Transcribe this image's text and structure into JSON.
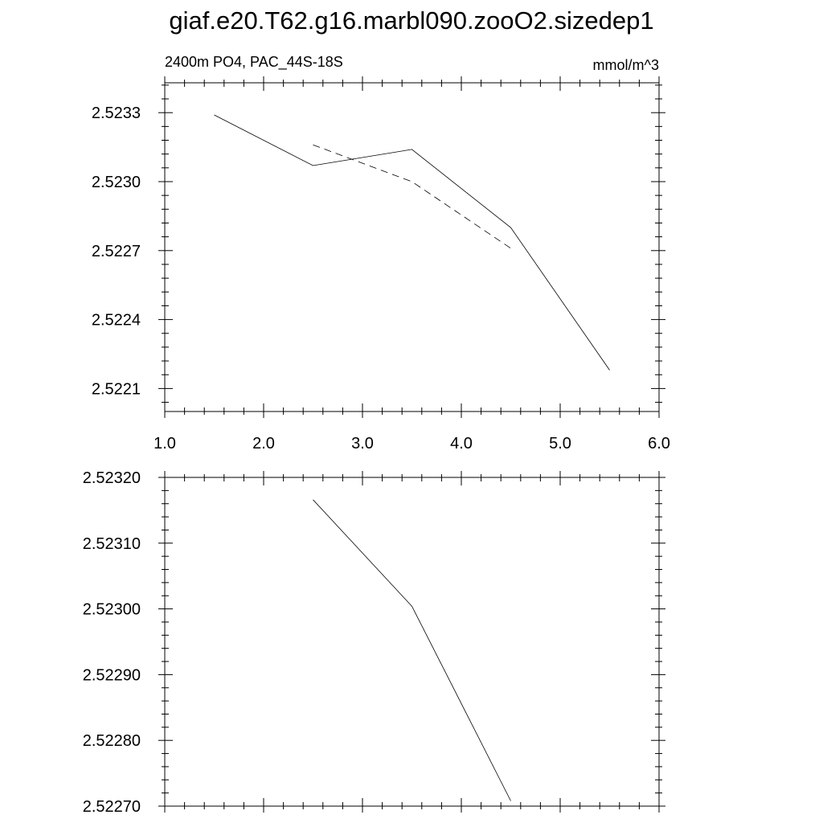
{
  "title": "giaf.e20.T62.g16.marbl090.zooO2.sizedep1",
  "chart_data": [
    {
      "type": "line",
      "subtitle_left": "2400m PO4, PAC_44S-18S",
      "subtitle_right": "mmol/m^3",
      "xlim": [
        1.0,
        6.0
      ],
      "ylim": [
        2.522,
        2.52343
      ],
      "x_ticks": [
        "1.0",
        "2.0",
        "3.0",
        "4.0",
        "5.0",
        "6.0"
      ],
      "x_tick_values": [
        1.0,
        2.0,
        3.0,
        4.0,
        5.0,
        6.0
      ],
      "y_ticks": [
        "2.5233",
        "2.5230",
        "2.5227",
        "2.5224",
        "2.5221"
      ],
      "y_tick_values": [
        2.5233,
        2.523,
        2.5227,
        2.5224,
        2.5221
      ],
      "grid": false,
      "series": [
        {
          "style": "solid",
          "x": [
            1.5,
            2.5,
            3.5,
            4.5,
            5.5
          ],
          "y": [
            2.52329,
            2.52307,
            2.52314,
            2.5228,
            2.52218
          ]
        },
        {
          "style": "dashed",
          "x": [
            2.5,
            3.5,
            4.5
          ],
          "y": [
            2.52316,
            2.523,
            2.52271
          ]
        }
      ]
    },
    {
      "type": "line",
      "xlim": [
        1.0,
        6.0
      ],
      "ylim": [
        2.5227,
        2.5232
      ],
      "y_ticks": [
        "2.52320",
        "2.52310",
        "2.52300",
        "2.52290",
        "2.52280",
        "2.52270"
      ],
      "y_tick_values": [
        2.5232,
        2.5231,
        2.523,
        2.5229,
        2.5228,
        2.5227
      ],
      "grid": false,
      "series": [
        {
          "style": "solid",
          "x": [
            2.5,
            3.5,
            4.5
          ],
          "y": [
            2.523166,
            2.523004,
            2.522708
          ]
        }
      ]
    }
  ]
}
